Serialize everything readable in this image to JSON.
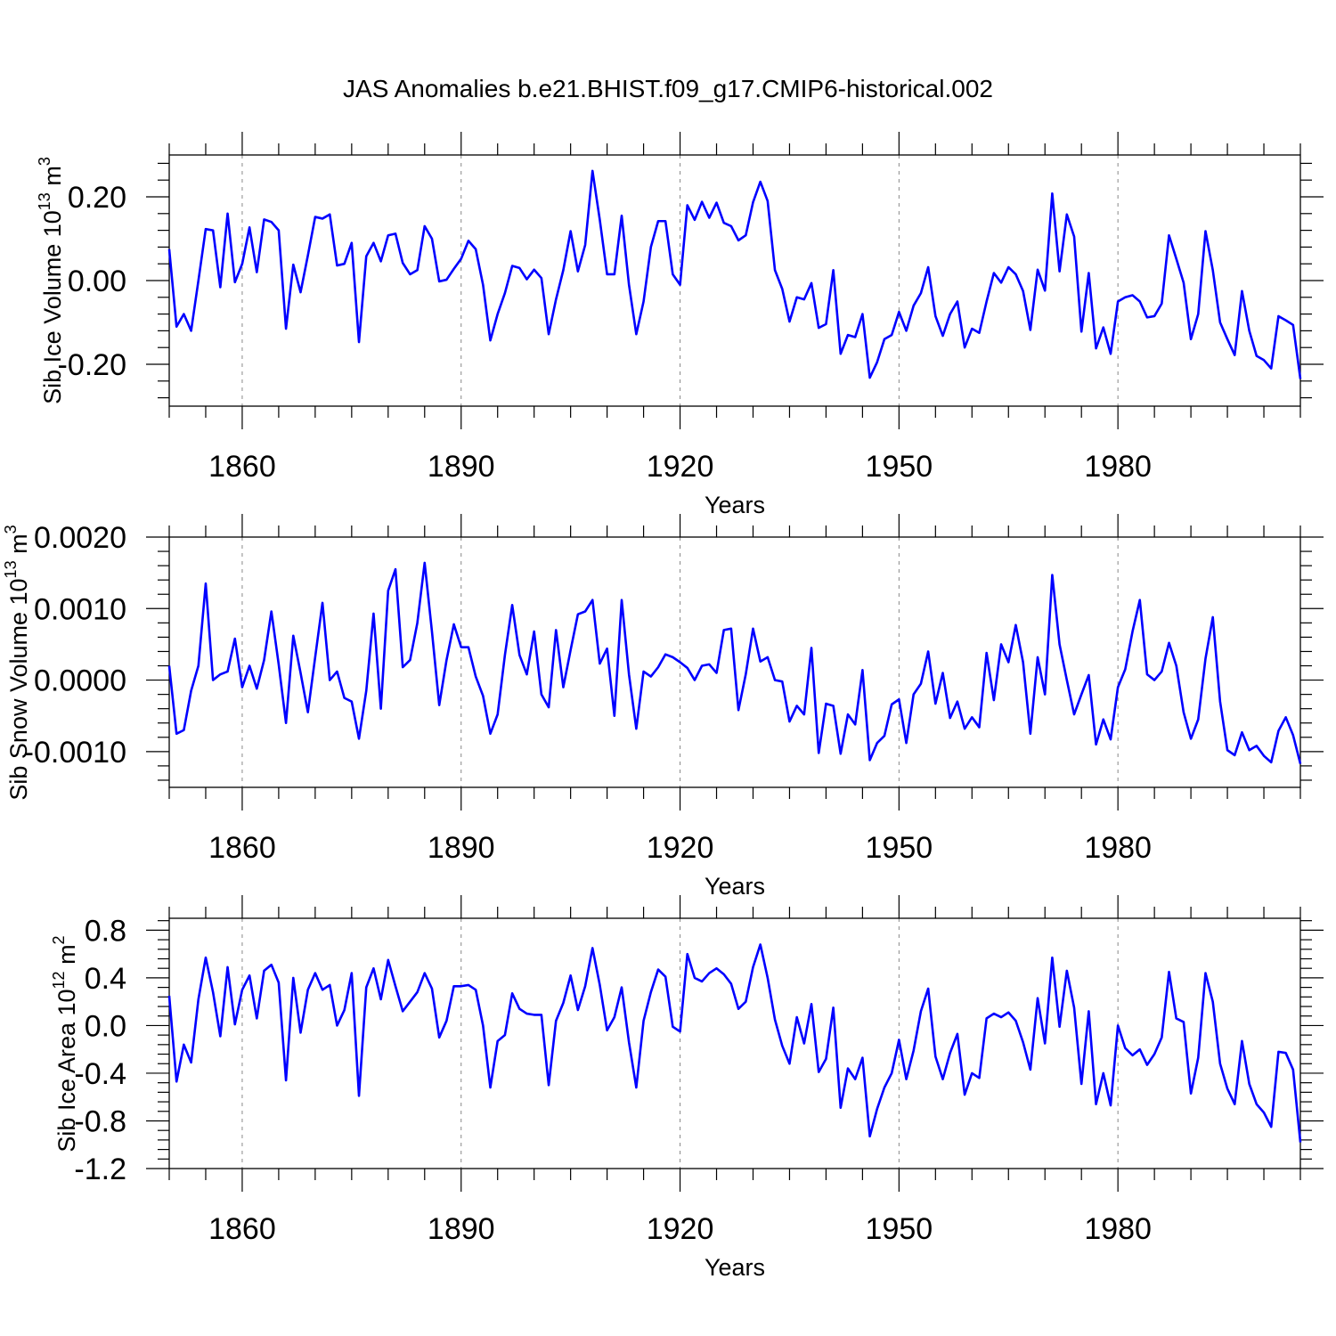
{
  "title": "JAS Anomalies b.e21.BHIST.f09_g17.CMIP6-historical.002",
  "line_color": "#0000ff",
  "chart_data": [
    {
      "type": "line",
      "title": "JAS Anomalies b.e21.BHIST.f09_g17.CMIP6-historical.002",
      "xlabel": "Years",
      "ylabel": "Sib Ice Volume 10",
      "ylabel_exp": "13",
      "ylabel_unit": " m",
      "ylabel_unit_exp": "3",
      "xlim": [
        1850,
        2005
      ],
      "ylim": [
        -0.3,
        0.3
      ],
      "xticks": [
        1860,
        1890,
        1920,
        1950,
        1980
      ],
      "yticks": [
        0.2,
        0.0,
        -0.2
      ],
      "yticklabels": [
        "0.20",
        "0.00",
        "-0.20"
      ],
      "grid": "vertical dashed at major x ticks",
      "x_start": 1850,
      "series": [
        {
          "name": "Sib Ice Volume",
          "values": [
            0.075,
            -0.11,
            -0.08,
            -0.12,
            0.0,
            0.123,
            0.12,
            -0.016,
            0.16,
            -0.004,
            0.04,
            0.127,
            0.02,
            0.146,
            0.14,
            0.12,
            -0.115,
            0.038,
            -0.028,
            0.06,
            0.152,
            0.148,
            0.158,
            0.036,
            0.04,
            0.09,
            -0.147,
            0.058,
            0.09,
            0.046,
            0.108,
            0.112,
            0.042,
            0.015,
            0.025,
            0.13,
            0.1,
            -0.002,
            0.002,
            0.028,
            0.052,
            0.095,
            0.075,
            -0.01,
            -0.143,
            -0.08,
            -0.03,
            0.035,
            0.03,
            0.003,
            0.026,
            0.006,
            -0.128,
            -0.045,
            0.025,
            0.118,
            0.022,
            0.085,
            0.262,
            0.145,
            0.015,
            0.015,
            0.155,
            -0.01,
            -0.128,
            -0.05,
            0.08,
            0.142,
            0.142,
            0.015,
            -0.01,
            0.18,
            0.145,
            0.188,
            0.15,
            0.186,
            0.138,
            0.13,
            0.096,
            0.108,
            0.187,
            0.236,
            0.19,
            0.025,
            -0.02,
            -0.098,
            -0.04,
            -0.045,
            -0.006,
            -0.113,
            -0.104,
            0.025,
            -0.175,
            -0.13,
            -0.135,
            -0.08,
            -0.232,
            -0.195,
            -0.14,
            -0.13,
            -0.075,
            -0.12,
            -0.06,
            -0.03,
            0.032,
            -0.085,
            -0.132,
            -0.08,
            -0.05,
            -0.16,
            -0.115,
            -0.125,
            -0.05,
            0.018,
            -0.005,
            0.032,
            0.015,
            -0.025,
            -0.118,
            0.026,
            -0.024,
            0.208,
            0.022,
            0.158,
            0.105,
            -0.122,
            0.018,
            -0.162,
            -0.112,
            -0.175,
            -0.05,
            -0.04,
            -0.035,
            -0.05,
            -0.088,
            -0.085,
            -0.055,
            0.108,
            0.052,
            -0.005,
            -0.14,
            -0.08,
            0.118,
            0.025,
            -0.1,
            -0.14,
            -0.178,
            -0.025,
            -0.12,
            -0.18,
            -0.19,
            -0.21,
            -0.085,
            -0.095,
            -0.106,
            -0.235
          ]
        }
      ]
    },
    {
      "type": "line",
      "xlabel": "Years",
      "ylabel": "Sib Snow Volume 10",
      "ylabel_exp": "13",
      "ylabel_unit": " m",
      "ylabel_unit_exp": "3",
      "xlim": [
        1850,
        2005
      ],
      "ylim": [
        -0.0015,
        0.002
      ],
      "xticks": [
        1860,
        1890,
        1920,
        1950,
        1980
      ],
      "yticks": [
        0.002,
        0.001,
        0.0,
        -0.001
      ],
      "yticklabels": [
        "0.0020",
        "0.0010",
        "0.0000",
        "-0.0010"
      ],
      "grid": "vertical dashed at major x ticks",
      "x_start": 1850,
      "series": [
        {
          "name": "Sib Snow Volume",
          "values": [
            0.0002,
            -0.00075,
            -0.0007,
            -0.00015,
            0.0002,
            0.00135,
            0.0,
            8e-05,
            0.00012,
            0.00058,
            -0.0001,
            0.0002,
            -0.00012,
            0.00028,
            0.00096,
            0.00022,
            -0.0006,
            0.00062,
            0.0001,
            -0.00045,
            0.00032,
            0.00108,
            0.0,
            0.00012,
            -0.00025,
            -0.0003,
            -0.00082,
            -0.00015,
            0.00093,
            -0.0004,
            0.00125,
            0.00155,
            0.00018,
            0.00028,
            0.0008,
            0.00164,
            0.00068,
            -0.00035,
            0.00028,
            0.00078,
            0.00046,
            0.00046,
            5e-05,
            -0.00022,
            -0.00075,
            -0.00048,
            0.00035,
            0.00105,
            0.00035,
            8e-05,
            0.00068,
            -0.0002,
            -0.00038,
            0.0007,
            -0.0001,
            0.00042,
            0.00092,
            0.00096,
            0.00112,
            0.00023,
            0.00044,
            -0.0005,
            0.00112,
            8e-05,
            -0.00068,
            0.00012,
            5e-05,
            0.00018,
            0.00036,
            0.00032,
            0.00025,
            0.00017,
            0.0,
            0.0002,
            0.00022,
            0.0001,
            0.0007,
            0.00072,
            -0.00042,
            8e-05,
            0.00072,
            0.00026,
            0.00032,
            0.0,
            -2e-05,
            -0.00058,
            -0.00036,
            -0.00048,
            0.00045,
            -0.00102,
            -0.00033,
            -0.00036,
            -0.00103,
            -0.00048,
            -0.00062,
            0.00014,
            -0.00112,
            -0.00088,
            -0.00078,
            -0.00034,
            -0.00027,
            -0.00088,
            -0.0002,
            -5e-05,
            0.0004,
            -0.00033,
            0.0001,
            -0.00053,
            -0.0003,
            -0.00068,
            -0.00052,
            -0.00066,
            0.00038,
            -0.00028,
            0.0005,
            0.00025,
            0.00077,
            0.00025,
            -0.00075,
            0.00032,
            -0.0002,
            0.00147,
            0.0005,
            0.0,
            -0.00048,
            -0.0002,
            7e-05,
            -0.0009,
            -0.00055,
            -0.00083,
            -0.0001,
            0.00015,
            0.00068,
            0.00112,
            8e-05,
            0.0,
            0.00012,
            0.00052,
            0.0002,
            -0.00045,
            -0.00082,
            -0.00055,
            0.0003,
            0.00088,
            -0.0003,
            -0.00098,
            -0.00105,
            -0.00073,
            -0.00098,
            -0.00092,
            -0.00106,
            -0.00115,
            -0.00071,
            -0.00052,
            -0.00077,
            -0.00117
          ]
        }
      ]
    },
    {
      "type": "line",
      "xlabel": "Years",
      "ylabel": "Sib Ice Area 10",
      "ylabel_exp": "12",
      "ylabel_unit": " m",
      "ylabel_unit_exp": "2",
      "xlim": [
        1850,
        2005
      ],
      "ylim": [
        -1.2,
        0.9
      ],
      "xticks": [
        1860,
        1890,
        1920,
        1950,
        1980
      ],
      "yticks": [
        0.8,
        0.4,
        0.0,
        -0.4,
        -0.8,
        -1.2
      ],
      "yticklabels": [
        "0.8",
        "0.4",
        "0.0",
        "-0.4",
        "-0.8",
        "-1.2"
      ],
      "grid": "vertical dashed at major x ticks",
      "x_start": 1850,
      "series": [
        {
          "name": "Sib Ice Area",
          "values": [
            0.25,
            -0.47,
            -0.16,
            -0.31,
            0.22,
            0.57,
            0.28,
            -0.09,
            0.49,
            0.01,
            0.3,
            0.42,
            0.06,
            0.46,
            0.51,
            0.36,
            -0.46,
            0.4,
            -0.06,
            0.3,
            0.44,
            0.3,
            0.34,
            0.0,
            0.13,
            0.44,
            -0.59,
            0.32,
            0.48,
            0.22,
            0.55,
            0.33,
            0.12,
            0.2,
            0.28,
            0.44,
            0.31,
            -0.1,
            0.04,
            0.33,
            0.33,
            0.34,
            0.3,
            0.0,
            -0.52,
            -0.13,
            -0.08,
            0.27,
            0.14,
            0.1,
            0.09,
            0.09,
            -0.5,
            0.04,
            0.19,
            0.42,
            0.13,
            0.33,
            0.65,
            0.34,
            -0.04,
            0.07,
            0.32,
            -0.14,
            -0.52,
            0.04,
            0.28,
            0.47,
            0.41,
            -0.01,
            -0.05,
            0.6,
            0.4,
            0.37,
            0.44,
            0.48,
            0.43,
            0.35,
            0.14,
            0.2,
            0.49,
            0.68,
            0.4,
            0.05,
            -0.17,
            -0.32,
            0.07,
            -0.15,
            0.18,
            -0.39,
            -0.28,
            0.15,
            -0.69,
            -0.36,
            -0.45,
            -0.27,
            -0.93,
            -0.7,
            -0.52,
            -0.4,
            -0.12,
            -0.45,
            -0.21,
            0.12,
            0.31,
            -0.26,
            -0.45,
            -0.23,
            -0.07,
            -0.58,
            -0.4,
            -0.44,
            0.06,
            0.1,
            0.07,
            0.11,
            0.04,
            -0.14,
            -0.37,
            0.23,
            -0.15,
            0.57,
            -0.01,
            0.46,
            0.15,
            -0.49,
            0.12,
            -0.66,
            -0.4,
            -0.67,
            -0.0,
            -0.19,
            -0.25,
            -0.2,
            -0.33,
            -0.24,
            -0.1,
            0.45,
            0.06,
            0.03,
            -0.57,
            -0.27,
            0.44,
            0.2,
            -0.32,
            -0.53,
            -0.66,
            -0.13,
            -0.49,
            -0.66,
            -0.73,
            -0.85,
            -0.22,
            -0.23,
            -0.37,
            -0.98
          ]
        }
      ]
    }
  ]
}
